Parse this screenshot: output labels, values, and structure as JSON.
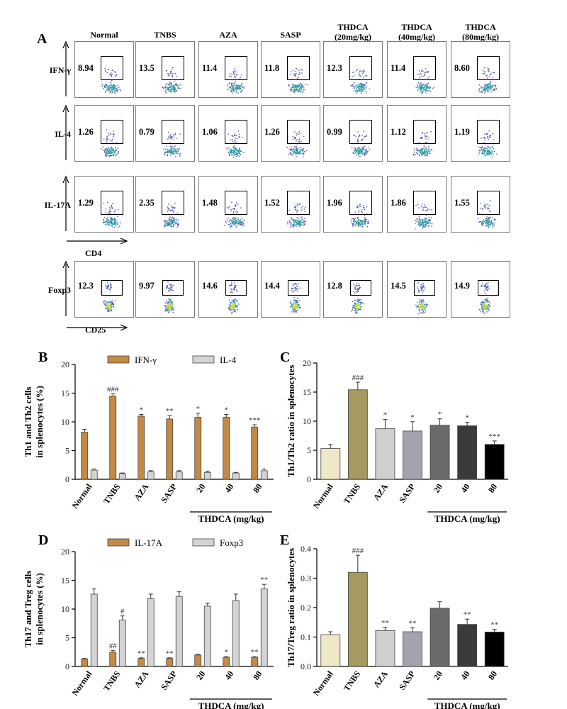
{
  "panelA": {
    "letter": "A",
    "columns": [
      "Normal",
      "TNBS",
      "AZA",
      "SASP",
      "THDCA\n(20mg/kg)",
      "THDCA\n(40mg/kg)",
      "THDCA\n(80mg/kg)"
    ],
    "rows": [
      {
        "label": "IFN-γ",
        "values": [
          "8.94",
          "13.5",
          "11.4",
          "11.8",
          "12.3",
          "11.4",
          "8.60"
        ]
      },
      {
        "label": "IL-4",
        "values": [
          "1.26",
          "0.79",
          "1.06",
          "1.26",
          "0.99",
          "1.12",
          "1.19"
        ]
      },
      {
        "label": "IL-17A",
        "values": [
          "1.29",
          "2.35",
          "1.48",
          "1.52",
          "1.96",
          "1.86",
          "1.55"
        ]
      },
      {
        "label": "Foxp3",
        "values": [
          "12.3",
          "9.97",
          "14.6",
          "14.4",
          "12.8",
          "14.5",
          "14.9"
        ]
      }
    ],
    "xaxis_label_cd4": "CD4",
    "xaxis_label_cd25": "CD25"
  },
  "chart_data": [
    {
      "panel": "B",
      "type": "bar",
      "categories": [
        "Normal",
        "TNBS",
        "AZA",
        "SASP",
        "20",
        "40",
        "80"
      ],
      "group_label": "THDCA (mg/kg)",
      "ylabel": "Th1 and Th2 cells\nin splenocytes (%)",
      "ylim": [
        0,
        20
      ],
      "yticks": [
        0,
        5,
        10,
        15,
        20
      ],
      "series": [
        {
          "name": "IFN-γ",
          "color": "#c48a45",
          "values": [
            8.2,
            14.5,
            11.0,
            10.5,
            10.8,
            10.8,
            9.1
          ],
          "errors": [
            0.5,
            0.4,
            0.3,
            0.6,
            0.7,
            0.5,
            0.4
          ],
          "marks": [
            "",
            "###",
            "*",
            "**",
            "*",
            "*",
            "***"
          ]
        },
        {
          "name": "IL-4",
          "color": "#d4d4d4",
          "values": [
            1.6,
            1.0,
            1.3,
            1.3,
            1.2,
            1.1,
            1.5
          ],
          "errors": [
            0.2,
            0.1,
            0.2,
            0.2,
            0.2,
            0.1,
            0.3
          ],
          "marks": [
            "",
            "",
            "",
            "",
            "",
            "",
            ""
          ]
        }
      ]
    },
    {
      "panel": "C",
      "type": "bar",
      "categories": [
        "Normal",
        "TNBS",
        "AZA",
        "SASP",
        "20",
        "40",
        "80"
      ],
      "group_label": "THDCA (mg/kg)",
      "ylabel": "Th1/Th2 ratio in splenocytes",
      "ylim": [
        0,
        20
      ],
      "yticks": [
        0,
        5,
        10,
        15,
        20
      ],
      "colors": [
        "#efe8c7",
        "#a49a62",
        "#d0d0d0",
        "#a3a3ad",
        "#6a6a6a",
        "#3a3a3a",
        "#000000"
      ],
      "values": [
        5.3,
        15.4,
        8.7,
        8.3,
        9.3,
        9.2,
        6.0
      ],
      "errors": [
        0.7,
        1.3,
        1.6,
        1.6,
        1.1,
        0.6,
        0.6
      ],
      "marks": [
        "",
        "###",
        "*",
        "*",
        "*",
        "*",
        "***"
      ]
    },
    {
      "panel": "D",
      "type": "bar",
      "categories": [
        "Normal",
        "TNBS",
        "AZA",
        "SASP",
        "20",
        "40",
        "80"
      ],
      "group_label": "THDCA (mg/kg)",
      "ylabel": "Th17 and Treg cells\nin splenocytes (%)",
      "ylim": [
        0,
        20
      ],
      "yticks": [
        0,
        5,
        10,
        15,
        20
      ],
      "series": [
        {
          "name": "IL-17A",
          "color": "#c48a45",
          "values": [
            1.3,
            2.5,
            1.4,
            1.4,
            2.0,
            1.6,
            1.6
          ],
          "errors": [
            0.1,
            0.3,
            0.1,
            0.1,
            0.1,
            0.1,
            0.1
          ],
          "marks": [
            "",
            "##",
            "**",
            "**",
            "",
            "*",
            "**"
          ]
        },
        {
          "name": "Foxp3",
          "color": "#d4d4d4",
          "values": [
            12.6,
            8.1,
            11.8,
            12.2,
            10.5,
            11.5,
            13.5
          ],
          "errors": [
            0.9,
            0.7,
            0.8,
            0.8,
            0.5,
            1.1,
            0.8
          ],
          "marks": [
            "",
            "#",
            "",
            "",
            "",
            "",
            "**"
          ]
        }
      ]
    },
    {
      "panel": "E",
      "type": "bar",
      "categories": [
        "Normal",
        "TNBS",
        "AZA",
        "SASP",
        "20",
        "40",
        "80"
      ],
      "group_label": "THDCA (mg/kg)",
      "ylabel": "Th17/Treg ratio in splenocytes",
      "ylim": [
        0,
        0.4
      ],
      "yticks": [
        0.0,
        0.1,
        0.2,
        0.3,
        0.4
      ],
      "colors": [
        "#efe8c7",
        "#a49a62",
        "#d0d0d0",
        "#a3a3ad",
        "#6a6a6a",
        "#3a3a3a",
        "#000000"
      ],
      "values": [
        0.108,
        0.32,
        0.122,
        0.118,
        0.198,
        0.143,
        0.117
      ],
      "errors": [
        0.01,
        0.058,
        0.01,
        0.013,
        0.022,
        0.018,
        0.009
      ],
      "marks": [
        "",
        "###",
        "**",
        "**",
        "",
        "**",
        "**"
      ]
    }
  ]
}
